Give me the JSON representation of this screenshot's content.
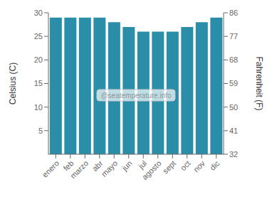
{
  "chart_data": {
    "type": "bar",
    "categories": [
      "enero",
      "feb",
      "marzo",
      "abr",
      "mayo",
      "jun",
      "jul",
      "agosto",
      "sept",
      "oct",
      "nov",
      "dic"
    ],
    "values": [
      29,
      29,
      29,
      29,
      28,
      27,
      26,
      26,
      26,
      27,
      28,
      29
    ],
    "color": "#2a8ea8",
    "ylabel": "Celsius (C)",
    "y2label": "Fahrenheit (F)",
    "ylim": [
      0,
      30
    ],
    "yticks": [
      5,
      10,
      15,
      20,
      25,
      30
    ],
    "y2lim": [
      32,
      86
    ],
    "y2ticks": [
      32,
      41,
      50,
      59,
      68,
      77,
      86
    ],
    "annotations": [
      "@seatemperature.info"
    ],
    "grid": false
  }
}
